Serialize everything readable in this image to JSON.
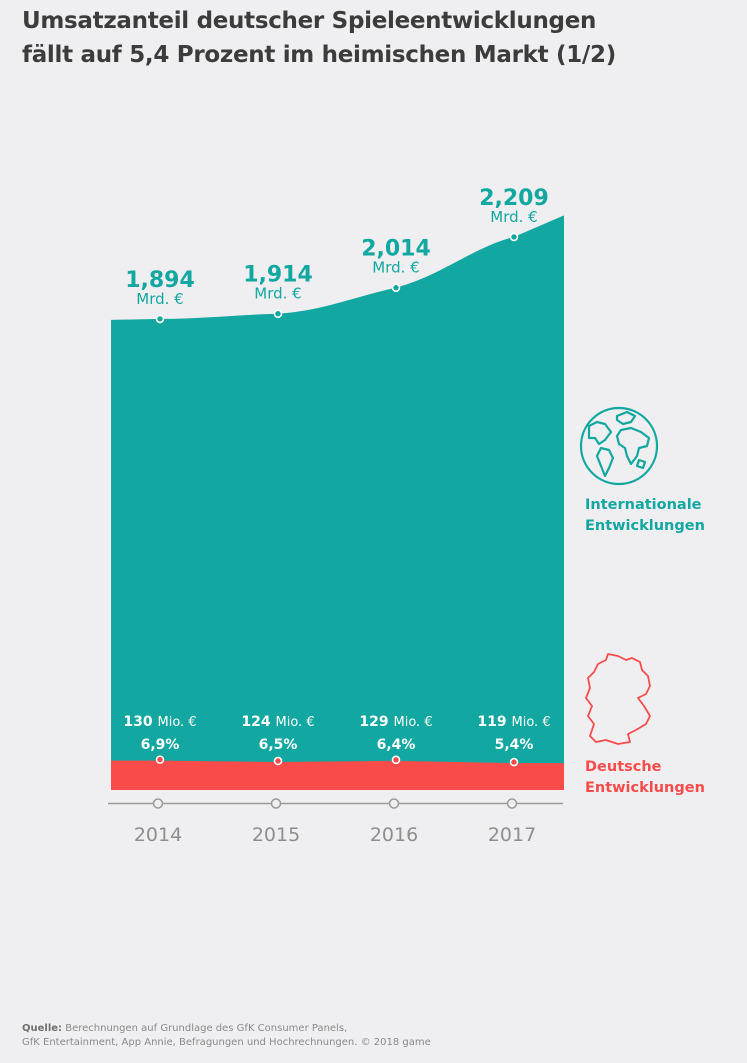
{
  "title": {
    "line1": "Umsatzanteil deutscher Spieleentwicklungen",
    "line2": "fällt auf 5,4 Prozent im heimischen Markt (1/2)"
  },
  "colors": {
    "international": "#12a7a0",
    "german": "#fa4b4b",
    "axis": "#9a9a9a",
    "text": "#3c3c3c"
  },
  "icons": {
    "international": "globe-icon",
    "german": "germany-map-icon"
  },
  "chart_data": {
    "type": "area",
    "x": [
      "2014",
      "2015",
      "2016",
      "2017"
    ],
    "series": [
      {
        "name": "Internationale Entwicklungen",
        "values": [
          1.894,
          1.914,
          2.014,
          2.209
        ],
        "labels": [
          "1,894",
          "1,914",
          "2,014",
          "2,209"
        ],
        "unit": "Mrd. €"
      },
      {
        "name": "Deutsche Entwicklungen",
        "values": [
          130,
          124,
          129,
          119
        ],
        "labels": [
          "130",
          "124",
          "129",
          "119"
        ],
        "unit": "Mio. €",
        "share": [
          "6,9%",
          "6,5%",
          "6,4%",
          "5,4%"
        ]
      }
    ],
    "legend": [
      "Internationale Entwicklungen",
      "Deutsche Entwicklungen"
    ],
    "legend_position": "right"
  },
  "legend": {
    "international": {
      "line1": "Internationale",
      "line2": "Entwicklungen"
    },
    "german": {
      "line1": "Deutsche",
      "line2": "Entwicklungen"
    }
  },
  "source": {
    "label": "Quelle:",
    "line1": "Berechnungen auf Grundlage des GfK Consumer Panels,",
    "line2": "GfK Entertainment, App Annie, Befragungen und Hochrechnungen. © 2018 game"
  }
}
